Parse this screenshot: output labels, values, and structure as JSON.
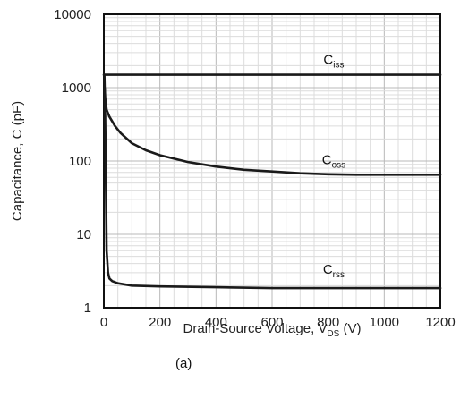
{
  "chart_data": {
    "type": "line",
    "xlabel_main": "Drain-Source Voltage, V",
    "xlabel_sub": "DS",
    "xlabel_unit": " (V)",
    "ylabel": "Capacitance, C (pF)",
    "xlim": [
      0,
      1200
    ],
    "ylim": [
      1,
      10000
    ],
    "yscale": "log",
    "grid": true,
    "x_ticks": [
      "0",
      "200",
      "400",
      "600",
      "800",
      "1000",
      "1200"
    ],
    "y_ticks": [
      "1",
      "10",
      "100",
      "1000",
      "10000"
    ],
    "series": [
      {
        "name_main": "C",
        "name_sub": "iss",
        "x": [
          0,
          5,
          20,
          100,
          200,
          400,
          600,
          800,
          1000,
          1200
        ],
        "y": [
          1500,
          1500,
          1500,
          1500,
          1500,
          1500,
          1500,
          1500,
          1500,
          1500
        ]
      },
      {
        "name_main": "C",
        "name_sub": "oss",
        "x": [
          3,
          5,
          10,
          20,
          40,
          60,
          100,
          150,
          200,
          300,
          400,
          500,
          600,
          700,
          800,
          900,
          1000,
          1100,
          1200
        ],
        "y": [
          1000,
          700,
          500,
          400,
          300,
          240,
          175,
          140,
          120,
          97,
          84,
          76,
          72,
          68,
          66,
          65,
          65,
          65,
          65
        ]
      },
      {
        "name_main": "C",
        "name_sub": "rss",
        "x": [
          2,
          4,
          6,
          8,
          10,
          15,
          20,
          30,
          50,
          100,
          200,
          400,
          600,
          800,
          1000,
          1200
        ],
        "y": [
          1500,
          600,
          150,
          30,
          6,
          3,
          2.5,
          2.3,
          2.15,
          2.0,
          1.95,
          1.9,
          1.85,
          1.85,
          1.85,
          1.85
        ]
      }
    ]
  },
  "caption": "(a)"
}
